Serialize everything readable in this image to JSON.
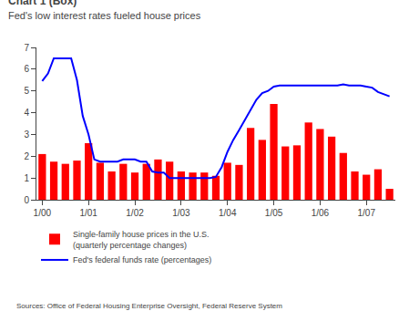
{
  "chart_data": {
    "type": "bar",
    "title": "Chart 1 (Box)",
    "subtitle": "Fed's low interest rates fueled house prices",
    "annotations": [
      "Sources: Office of Federal Housing Enterprise Oversight, Federal Reserve System"
    ],
    "categories": [
      "1/00",
      null,
      null,
      null,
      "1/01",
      null,
      null,
      null,
      "1/02",
      null,
      null,
      null,
      "1/03",
      null,
      null,
      null,
      "1/04",
      null,
      null,
      null,
      "1/05",
      null,
      null,
      null,
      "1/06",
      null,
      null,
      null,
      "1/07",
      null,
      null
    ],
    "series": [
      {
        "name": "Single-family house prices in the U.S.\n(quarterly percentage changes)",
        "type": "bar",
        "color": "#ff0000",
        "values": [
          2.1,
          1.75,
          1.65,
          1.8,
          2.6,
          1.7,
          1.3,
          1.65,
          1.25,
          1.65,
          1.85,
          1.75,
          1.3,
          1.25,
          1.25,
          1.1,
          1.7,
          1.6,
          3.3,
          2.75,
          4.4,
          2.45,
          2.5,
          3.55,
          3.25,
          2.9,
          2.15,
          1.3,
          1.15,
          1.4,
          0.5
        ]
      },
      {
        "name": "Fed's federal funds rate (percentages)",
        "type": "line",
        "color": "#0000ff",
        "x": [
          0,
          0.5,
          1.0,
          1.5,
          2.0,
          2.5,
          3.0,
          3.5,
          4.0,
          4.5,
          5.0,
          5.5,
          6.0,
          6.5,
          7.0,
          7.5,
          8.0,
          8.5,
          9.0,
          9.5,
          10.0,
          10.5,
          11.0,
          11.5,
          12.0,
          12.5,
          13.0,
          13.5,
          14.0,
          14.5,
          15.0,
          15.5,
          16.0,
          16.5,
          17.0,
          17.5,
          18.0,
          18.5,
          19.0,
          19.5,
          20.0,
          20.5,
          21.0,
          21.5,
          22.0,
          22.5,
          23.0,
          23.5,
          24.0,
          24.5,
          25.0,
          25.5,
          26.0,
          26.5,
          27.0,
          27.5,
          28.0,
          28.5,
          29.0,
          29.5,
          30.0
        ],
        "values": [
          5.45,
          5.8,
          6.5,
          6.5,
          6.5,
          6.5,
          5.5,
          3.85,
          3.0,
          1.85,
          1.75,
          1.75,
          1.75,
          1.75,
          1.85,
          1.85,
          1.85,
          1.75,
          1.75,
          1.3,
          1.25,
          1.25,
          1.0,
          1.0,
          1.0,
          1.0,
          1.0,
          1.0,
          1.0,
          1.0,
          1.05,
          1.5,
          2.2,
          2.75,
          3.2,
          3.65,
          4.15,
          4.6,
          4.9,
          5.0,
          5.2,
          5.25,
          5.25,
          5.25,
          5.25,
          5.25,
          5.25,
          5.25,
          5.25,
          5.25,
          5.25,
          5.25,
          5.3,
          5.25,
          5.25,
          5.25,
          5.2,
          5.15,
          4.95,
          4.85,
          4.75
        ]
      }
    ],
    "ylim": [
      0,
      7
    ],
    "yticks": [
      0,
      1,
      2,
      3,
      4,
      5,
      6,
      7
    ],
    "grid": false,
    "legend": "bottom"
  }
}
